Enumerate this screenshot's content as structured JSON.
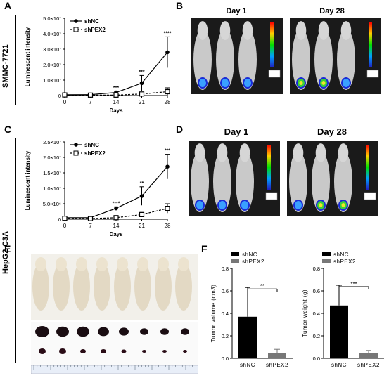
{
  "panels": {
    "A": "A",
    "B": "B",
    "C": "C",
    "D": "D",
    "E": "E",
    "F": "F"
  },
  "row_labels": {
    "top": "SMMC-7721",
    "bottom": "HepG2-C3A"
  },
  "imaging": {
    "B": {
      "day1": "Day 1",
      "day28": "Day 28"
    },
    "D": {
      "day1": "Day 1",
      "day28": "Day 28"
    }
  },
  "colors": {
    "shNC": "#000000",
    "shPEX2": "#808080",
    "bar_shNC": "#000000",
    "bar_shPEX2": "#777777",
    "mouse_bg": "#1a1a1a"
  },
  "chart_data": [
    {
      "id": "A",
      "type": "line",
      "x": [
        0,
        7,
        14,
        21,
        28
      ],
      "xlabel": "Days",
      "ylabel": "Luminescent intensity",
      "ylim": [
        0,
        50000000
      ],
      "yticks": [
        "0",
        "1.0×10⁷",
        "2.0×10⁷",
        "3.0×10⁷",
        "4.0×10⁷",
        "5.0×10⁷"
      ],
      "xticks": [
        "0",
        "7",
        "14",
        "21",
        "28"
      ],
      "legend": [
        "shNC",
        "shPEX2"
      ],
      "series": [
        {
          "name": "shNC",
          "values": [
            500000,
            600000,
            2000000,
            8000000,
            28000000
          ],
          "err": [
            300000,
            300000,
            800000,
            5000000,
            10000000
          ]
        },
        {
          "name": "shPEX2",
          "values": [
            400000,
            300000,
            300000,
            1000000,
            2500000
          ],
          "err": [
            200000,
            200000,
            200000,
            800000,
            2500000
          ]
        }
      ],
      "annotations": [
        "***",
        "***",
        "****"
      ]
    },
    {
      "id": "C",
      "type": "line",
      "x": [
        0,
        7,
        14,
        21,
        28
      ],
      "xlabel": "Days",
      "ylabel": "Luminescent intensity",
      "ylim": [
        0,
        25000000
      ],
      "yticks": [
        "0",
        "5.0×10⁶",
        "1.0×10⁷",
        "1.5×10⁷",
        "2.0×10⁷",
        "2.5×10⁷"
      ],
      "xticks": [
        "0",
        "7",
        "14",
        "21",
        "28"
      ],
      "legend": [
        "shNC",
        "shPEX2"
      ],
      "series": [
        {
          "name": "shNC",
          "values": [
            500000,
            500000,
            3500000,
            7500000,
            17000000
          ],
          "err": [
            200000,
            200000,
            500000,
            3000000,
            4000000
          ]
        },
        {
          "name": "shPEX2",
          "values": [
            300000,
            200000,
            500000,
            1500000,
            3500000
          ],
          "err": [
            200000,
            200000,
            300000,
            700000,
            1500000
          ]
        }
      ],
      "annotations": [
        "****",
        "**",
        "***"
      ]
    },
    {
      "id": "F1",
      "type": "bar",
      "categories": [
        "shNC",
        "shPEX2"
      ],
      "values": [
        0.37,
        0.05
      ],
      "err": [
        0.26,
        0.03
      ],
      "ylabel": "Tumor volume (cm3)",
      "ylim": [
        0,
        0.8
      ],
      "yticks": [
        "0.0",
        "0.2",
        "0.4",
        "0.6",
        "0.8"
      ],
      "legend": [
        "shNC",
        "shPEX2"
      ],
      "significance": "**"
    },
    {
      "id": "F2",
      "type": "bar",
      "categories": [
        "shNC",
        "shPEX2"
      ],
      "values": [
        0.47,
        0.05
      ],
      "err": [
        0.18,
        0.02
      ],
      "ylabel": "Tumor weight (g)",
      "ylim": [
        0,
        0.8
      ],
      "yticks": [
        "0.0",
        "0.2",
        "0.4",
        "0.6",
        "0.8"
      ],
      "legend": [
        "shNC",
        "shPEX2"
      ],
      "significance": "***"
    }
  ]
}
